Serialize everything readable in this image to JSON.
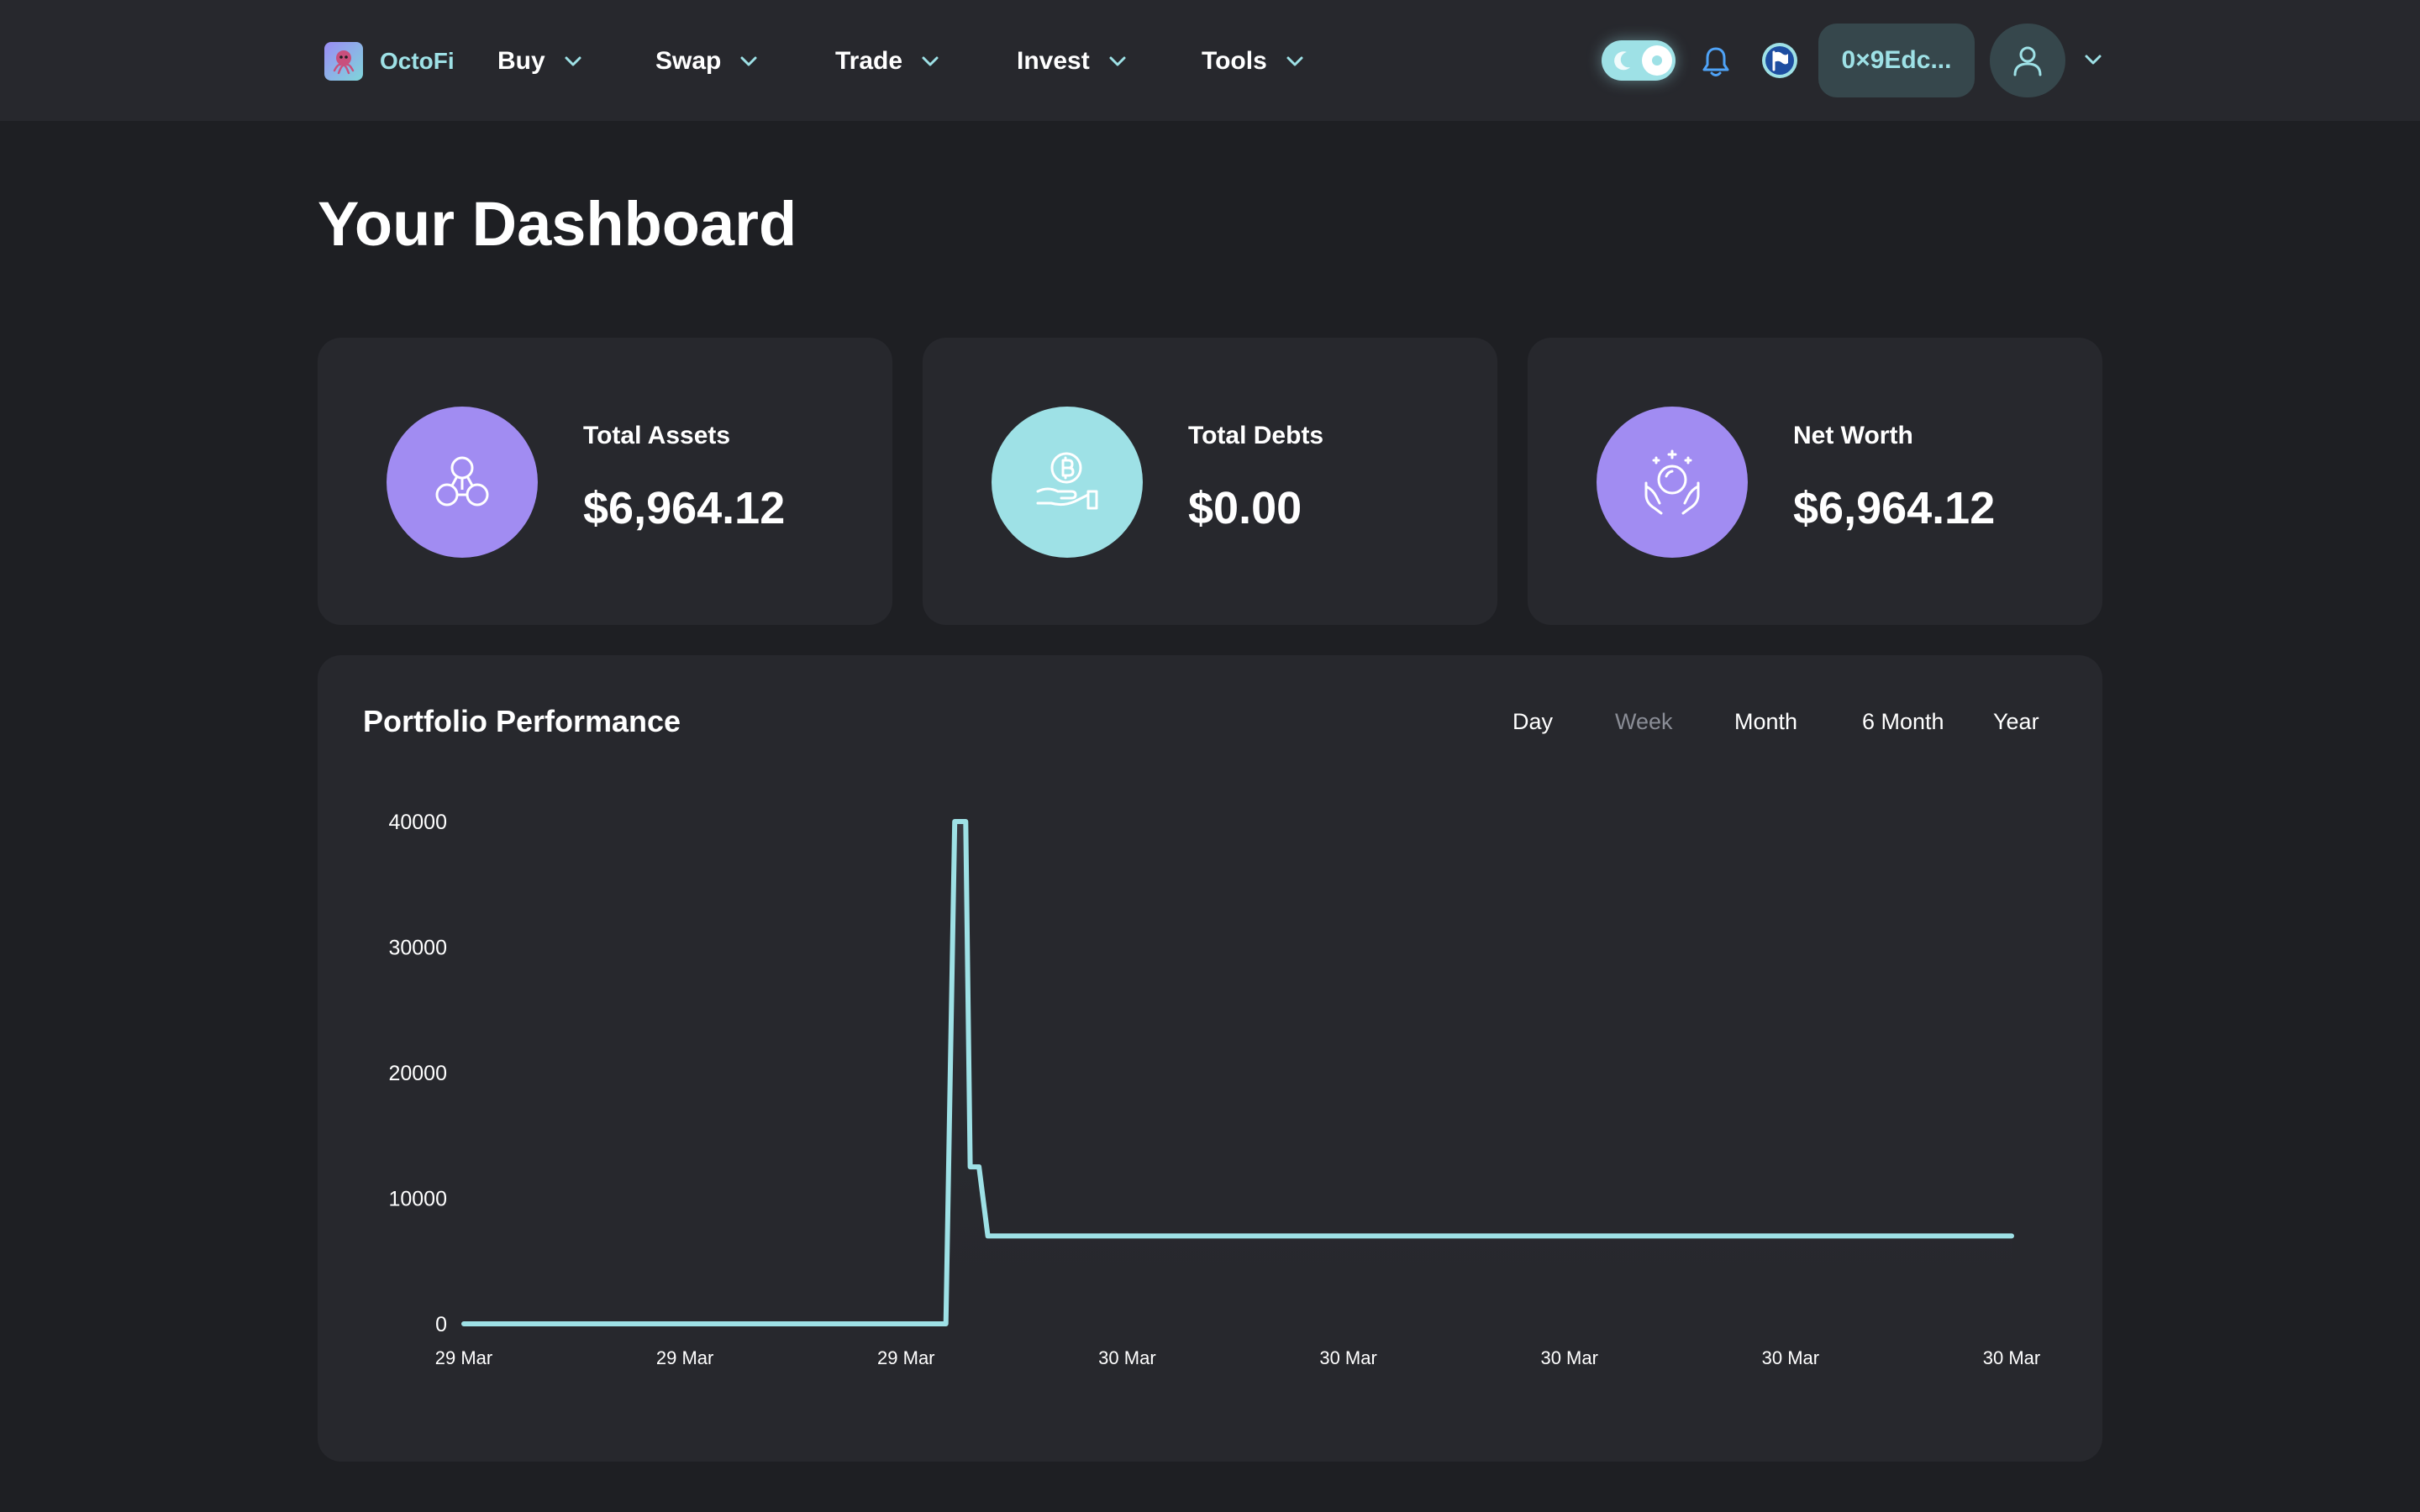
{
  "header": {
    "brand": "OctoFi",
    "nav": [
      {
        "label": "Buy"
      },
      {
        "label": "Swap"
      },
      {
        "label": "Trade"
      },
      {
        "label": "Invest"
      },
      {
        "label": "Tools"
      }
    ],
    "wallet_address": "0×9Edc...",
    "theme_toggle": "dark"
  },
  "page": {
    "title": "Your Dashboard"
  },
  "cards": [
    {
      "label": "Total Assets",
      "value": "$6,964.12",
      "icon": "molecule-icon",
      "color": "#a18cf2"
    },
    {
      "label": "Total Debts",
      "value": "$0.00",
      "icon": "coin-hand-icon",
      "color": "#9ee1e6"
    },
    {
      "label": "Net Worth",
      "value": "$6,964.12",
      "icon": "crystal-ball-icon",
      "color": "#a18cf2"
    }
  ],
  "performance": {
    "title": "Portfolio Performance",
    "ranges": [
      "Day",
      "Week",
      "Month",
      "6 Month",
      "Year"
    ],
    "active_range": "Week"
  },
  "chart_data": {
    "type": "area",
    "line_color": "#9ee1e6",
    "grid": false,
    "legend": "none",
    "ylim": [
      0,
      40000
    ],
    "y_ticks": [
      0,
      10000,
      20000,
      30000,
      40000
    ],
    "x_tick_labels": [
      "29 Mar",
      "29 Mar",
      "29 Mar",
      "30 Mar",
      "30 Mar",
      "30 Mar",
      "30 Mar",
      "30 Mar"
    ],
    "x_range": [
      0,
      7
    ],
    "series": [
      {
        "x": [
          0,
          2.18,
          2.2,
          2.22,
          2.27,
          2.29,
          2.33,
          2.37,
          2.39,
          2.43,
          7
        ],
        "values": [
          0,
          0,
          20000,
          40000,
          40000,
          12500,
          12500,
          7000,
          7000,
          7000,
          7000
        ]
      }
    ]
  }
}
